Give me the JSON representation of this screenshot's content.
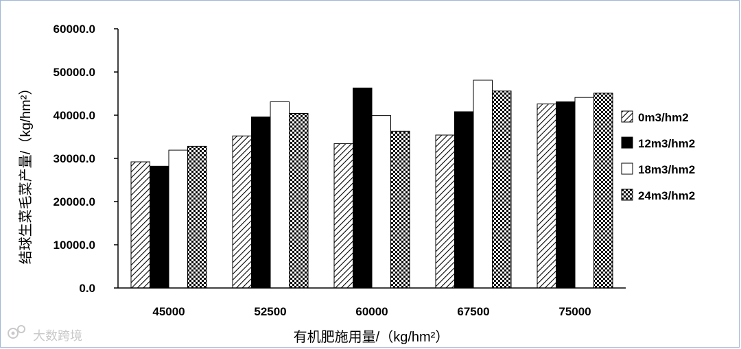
{
  "chart_data": {
    "type": "bar",
    "categories": [
      "45000",
      "52500",
      "60000",
      "67500",
      "75000"
    ],
    "series": [
      {
        "name": "0m3/hm2",
        "pattern": "diagonal-hatch",
        "values": [
          29200,
          35200,
          33400,
          35400,
          42600
        ]
      },
      {
        "name": "12m3/hm2",
        "pattern": "solid-black",
        "values": [
          28200,
          39600,
          46300,
          40800,
          43100
        ]
      },
      {
        "name": "18m3/hm2",
        "pattern": "solid-white",
        "values": [
          31900,
          43100,
          39900,
          48100,
          44100
        ]
      },
      {
        "name": "24m3/hm2",
        "pattern": "checkerboard",
        "values": [
          32800,
          40400,
          36300,
          45600,
          45100
        ]
      }
    ],
    "ylim": [
      0,
      60000
    ],
    "yticks": [
      "0.0",
      "10000.0",
      "20000.0",
      "30000.0",
      "40000.0",
      "50000.0",
      "60000.0"
    ],
    "xlabel": "有机肥施用量/（kg/hm²）",
    "ylabel": "结球生菜毛菜产量/（kg/hm²）",
    "grid": false,
    "legend_position": "right"
  },
  "watermark": {
    "text": "大数跨境",
    "icon": "camera-logo-icon"
  },
  "colors": {
    "bar_fill_dark": "#000000",
    "bar_fill_light": "#ffffff",
    "frame_border": "#9fb7d8",
    "watermark": "#c9c9c9"
  }
}
